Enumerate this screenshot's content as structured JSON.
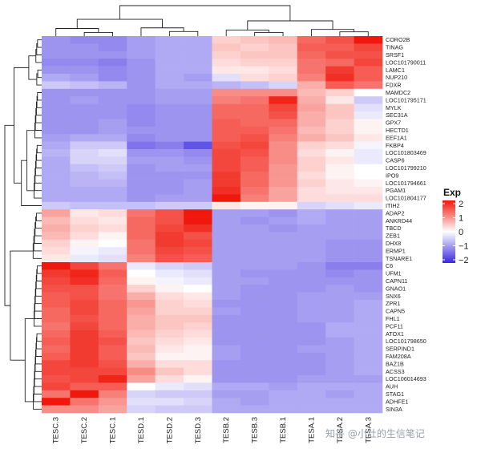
{
  "chart_data": {
    "type": "heatmap",
    "columns": [
      "TESC.3",
      "TESC.2",
      "TESC.1",
      "TESD.1",
      "TESD.2",
      "TESD.3",
      "TESB.2",
      "TESB.3",
      "TESB.1",
      "TESA.1",
      "TESA.2",
      "TESA.3"
    ],
    "rows": [
      "CORO2B",
      "TINAG",
      "SRSF1",
      "LOC101790011",
      "LAMC1",
      "NUP210",
      "FDXR",
      "MAMDC2",
      "LOC101795171",
      "MYLK",
      "SEC31A",
      "GPX7",
      "HECTD1",
      "EEF1A1",
      "FKBP4",
      "LOC101803469",
      "CASP6",
      "LOC101799210",
      "IPO9",
      "LOC101794661",
      "PGAM1",
      "LOC101804177",
      "ITIH2",
      "ADAP2",
      "ANKRD44",
      "TBCD",
      "ZEB1",
      "DHX8",
      "ERMP1",
      "TSNARE1",
      "C6",
      "UFM1",
      "CAPN11",
      "GNAO1",
      "SNX6",
      "ZPR1",
      "CAPN5",
      "FHL1",
      "PCF11",
      "ATOX1",
      "LOC101798650",
      "SERPIND1",
      "FAM208A",
      "BAZ1B",
      "ACSS3",
      "LOC106014693",
      "AUH",
      "STAG1",
      "ADHFE1",
      "SIN3A"
    ],
    "values": [
      [
        -1.0,
        -1.1,
        -1.1,
        -0.9,
        -0.8,
        -0.8,
        0.4,
        0.5,
        0.6,
        1.3,
        1.5,
        2.0
      ],
      [
        -1.0,
        -1.0,
        -1.1,
        -0.9,
        -0.8,
        -0.8,
        0.5,
        0.4,
        0.5,
        1.4,
        1.4,
        1.6
      ],
      [
        -1.0,
        -1.0,
        -1.0,
        -0.9,
        -0.8,
        -0.8,
        0.4,
        0.5,
        0.5,
        1.3,
        1.5,
        1.5
      ],
      [
        -1.1,
        -1.1,
        -1.2,
        -1.0,
        -0.8,
        -0.8,
        0.3,
        0.4,
        0.4,
        1.2,
        1.3,
        1.6
      ],
      [
        -1.0,
        -1.0,
        -1.1,
        -1.0,
        -0.8,
        -0.8,
        0.2,
        0.2,
        0.3,
        1.2,
        1.7,
        1.4
      ],
      [
        -0.8,
        -0.9,
        -1.1,
        -1.0,
        -0.8,
        -0.9,
        -0.3,
        0.3,
        0.4,
        1.1,
        1.8,
        1.4
      ],
      [
        -0.5,
        -0.6,
        -0.7,
        -1.0,
        -0.8,
        -0.8,
        -0.7,
        -0.6,
        -0.4,
        0.7,
        1.4,
        1.2
      ],
      [
        -1.0,
        -1.0,
        -1.0,
        -1.0,
        -0.9,
        -0.9,
        1.0,
        1.0,
        1.0,
        0.6,
        0.4,
        0.0
      ],
      [
        -1.0,
        -0.9,
        -1.0,
        -1.0,
        -0.9,
        -0.9,
        1.1,
        1.2,
        1.9,
        0.7,
        0.2,
        -0.5
      ],
      [
        -1.0,
        -1.0,
        -1.0,
        -1.1,
        -1.0,
        -1.0,
        1.3,
        1.3,
        1.6,
        0.8,
        0.5,
        -0.3
      ],
      [
        -1.0,
        -1.0,
        -1.0,
        -1.1,
        -1.0,
        -1.0,
        1.3,
        1.3,
        1.5,
        0.7,
        0.5,
        -0.2
      ],
      [
        -1.0,
        -1.0,
        -0.9,
        -1.1,
        -1.0,
        -1.0,
        1.4,
        1.3,
        1.3,
        0.7,
        0.4,
        0.1
      ],
      [
        -1.0,
        -1.0,
        -0.9,
        -1.0,
        -1.0,
        -1.0,
        1.4,
        1.4,
        1.2,
        0.6,
        0.4,
        0.1
      ],
      [
        -0.9,
        -0.8,
        -0.8,
        -1.1,
        -1.0,
        -1.0,
        1.4,
        1.5,
        1.1,
        0.7,
        0.5,
        0.2
      ],
      [
        -0.8,
        -0.5,
        -0.5,
        -1.3,
        -1.2,
        -1.6,
        1.5,
        1.6,
        1.0,
        0.4,
        0.3,
        -0.1
      ],
      [
        -0.7,
        -0.4,
        -0.3,
        -1.0,
        -1.0,
        -1.1,
        1.6,
        1.5,
        1.0,
        0.3,
        0.1,
        -0.2
      ],
      [
        -0.8,
        -0.4,
        -0.4,
        -0.9,
        -0.9,
        -1.0,
        1.6,
        1.4,
        1.0,
        0.4,
        0.2,
        -0.2
      ],
      [
        -0.8,
        -0.6,
        -0.5,
        -1.0,
        -0.9,
        -0.9,
        1.6,
        1.4,
        0.9,
        0.4,
        0.1,
        0.0
      ],
      [
        -0.8,
        -0.7,
        -0.6,
        -1.0,
        -1.0,
        -1.0,
        1.7,
        1.3,
        0.9,
        0.3,
        0.1,
        0.0
      ],
      [
        -0.8,
        -0.7,
        -0.7,
        -1.0,
        -1.0,
        -0.9,
        1.7,
        1.3,
        0.9,
        0.4,
        0.2,
        0.1
      ],
      [
        -0.8,
        -0.8,
        -0.8,
        -1.0,
        -1.0,
        -0.9,
        1.8,
        1.2,
        0.8,
        0.3,
        0.2,
        0.2
      ],
      [
        -0.8,
        -0.8,
        -0.8,
        -1.0,
        -0.9,
        -0.9,
        2.0,
        1.1,
        0.8,
        0.3,
        0.3,
        0.3
      ],
      [
        -0.5,
        -0.6,
        -0.6,
        -0.6,
        -0.5,
        -0.5,
        0.2,
        0.1,
        0.1,
        -0.4,
        -0.3,
        -0.2
      ],
      [
        0.8,
        0.2,
        0.3,
        1.2,
        1.5,
        2.3,
        -0.9,
        -0.9,
        -1.0,
        -0.8,
        -0.9,
        -0.9
      ],
      [
        0.6,
        0.3,
        0.2,
        1.3,
        1.5,
        2.1,
        -0.9,
        -1.0,
        -0.9,
        -0.8,
        -0.9,
        -0.9
      ],
      [
        0.7,
        0.4,
        0.3,
        1.3,
        1.6,
        1.8,
        -0.9,
        -0.9,
        -1.0,
        -0.9,
        -0.9,
        -0.9
      ],
      [
        0.6,
        0.3,
        0.1,
        1.3,
        1.7,
        1.5,
        -0.9,
        -0.9,
        -0.9,
        -0.9,
        -0.9,
        -0.9
      ],
      [
        0.4,
        0.1,
        0.0,
        1.2,
        1.7,
        1.6,
        -0.9,
        -0.9,
        -0.9,
        -0.9,
        -1.0,
        -1.0
      ],
      [
        0.3,
        -0.1,
        -0.2,
        1.2,
        1.6,
        1.5,
        -0.9,
        -0.9,
        -0.9,
        -0.9,
        -1.0,
        -1.0
      ],
      [
        0.2,
        -0.2,
        -0.3,
        1.1,
        1.5,
        1.4,
        -0.9,
        -0.9,
        -0.9,
        -0.9,
        -1.0,
        -1.0
      ],
      [
        2.2,
        1.6,
        1.2,
        -0.2,
        -0.4,
        -0.5,
        -0.9,
        -0.9,
        -0.9,
        -1.0,
        -1.2,
        -1.2
      ],
      [
        1.7,
        1.9,
        1.4,
        0.0,
        -0.2,
        -0.3,
        -0.9,
        -1.0,
        -1.0,
        -1.0,
        -1.1,
        -1.0
      ],
      [
        1.6,
        1.8,
        1.3,
        0.1,
        -0.1,
        -0.2,
        -0.9,
        -0.9,
        -1.0,
        -1.0,
        -1.0,
        -1.0
      ],
      [
        1.5,
        1.5,
        1.2,
        0.4,
        0.1,
        0.0,
        -0.9,
        -1.0,
        -1.0,
        -1.0,
        -0.9,
        -1.0
      ],
      [
        1.4,
        1.5,
        1.2,
        0.7,
        0.3,
        0.2,
        -0.9,
        -1.0,
        -1.0,
        -0.9,
        -0.9,
        -0.9
      ],
      [
        1.4,
        1.6,
        1.3,
        0.9,
        0.4,
        0.3,
        -1.0,
        -1.0,
        -1.0,
        -0.9,
        -0.9,
        -0.8
      ],
      [
        1.3,
        1.6,
        1.3,
        0.8,
        0.4,
        0.4,
        -0.9,
        -1.0,
        -1.0,
        -0.9,
        -0.9,
        -0.8
      ],
      [
        1.3,
        1.5,
        1.3,
        0.7,
        0.5,
        0.5,
        -1.0,
        -1.0,
        -1.0,
        -0.9,
        -0.9,
        -0.8
      ],
      [
        1.2,
        1.6,
        1.3,
        0.7,
        0.5,
        0.4,
        -1.0,
        -1.0,
        -1.0,
        -1.0,
        -0.8,
        -0.8
      ],
      [
        1.3,
        1.7,
        1.4,
        0.6,
        0.4,
        0.3,
        -1.0,
        -1.0,
        -1.0,
        -1.0,
        -0.8,
        -0.8
      ],
      [
        1.4,
        1.7,
        1.5,
        0.5,
        0.3,
        0.2,
        -1.0,
        -1.0,
        -1.0,
        -1.0,
        -0.9,
        -0.8
      ],
      [
        1.3,
        1.7,
        1.4,
        0.6,
        0.2,
        0.1,
        -0.9,
        -1.0,
        -1.0,
        -0.9,
        -0.9,
        -0.8
      ],
      [
        1.4,
        1.7,
        1.4,
        0.5,
        0.1,
        0.1,
        -0.9,
        -1.0,
        -1.0,
        -1.0,
        -0.9,
        -0.8
      ],
      [
        1.6,
        1.7,
        1.5,
        0.7,
        0.3,
        0.3,
        -1.0,
        -1.0,
        -1.0,
        -1.0,
        -0.9,
        -0.8
      ],
      [
        1.6,
        1.6,
        1.6,
        1.0,
        0.5,
        0.3,
        -1.0,
        -1.0,
        -1.0,
        -1.0,
        -0.9,
        -0.8
      ],
      [
        1.5,
        1.6,
        1.9,
        0.8,
        0.3,
        0.1,
        -1.0,
        -1.0,
        -1.0,
        -0.9,
        -0.9,
        -0.9
      ],
      [
        1.6,
        1.4,
        1.4,
        0.0,
        -0.2,
        -0.3,
        -0.8,
        -0.8,
        -0.9,
        -0.8,
        -0.8,
        -0.8
      ],
      [
        1.2,
        2.1,
        1.1,
        -0.4,
        -0.5,
        -0.5,
        -0.9,
        -0.9,
        -0.8,
        -0.8,
        -0.9,
        -0.8
      ],
      [
        2.0,
        1.2,
        0.9,
        -0.3,
        -0.3,
        -0.4,
        -0.8,
        -0.9,
        -0.8,
        -0.8,
        -0.8,
        -0.8
      ],
      [
        1.0,
        1.0,
        0.8,
        -0.4,
        -0.5,
        -0.5,
        -0.8,
        -0.8,
        -0.8,
        -0.8,
        -0.8,
        -0.8
      ]
    ],
    "legend": {
      "title": "Exp",
      "ticks": [
        "2",
        "1",
        "0",
        "−1",
        "−2"
      ],
      "range": [
        -2,
        2
      ],
      "position": "right"
    },
    "color_scale": {
      "low": "#3a28e0",
      "mid": "#ffffff",
      "high": "#f0180c"
    }
  },
  "watermark": "知乎 @小灶的生信笔记"
}
